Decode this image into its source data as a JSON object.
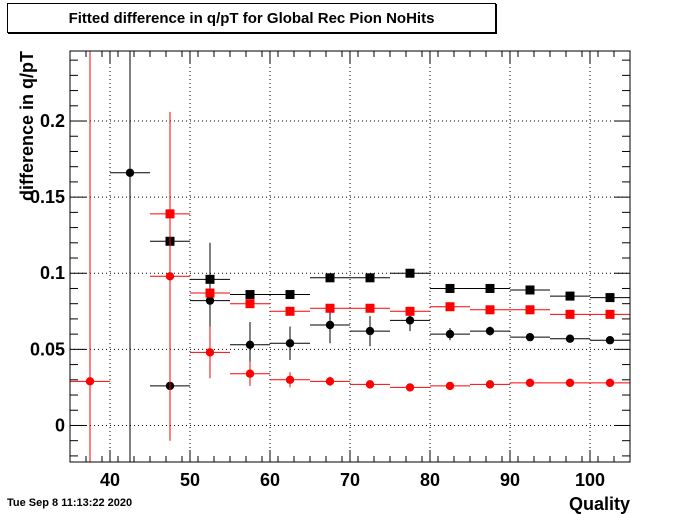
{
  "title": "Fitted difference in q/pT for Global Rec Pion NoHits",
  "timestamp": "Tue Sep  8 11:13:22 2020",
  "chart_data": {
    "type": "scatter",
    "title": "Fitted difference in q/pT for Global Rec Pion NoHits",
    "xlabel": "Quality",
    "ylabel": "difference in q/pT",
    "xlim": [
      35,
      105
    ],
    "ylim": [
      -0.024,
      0.246
    ],
    "grid": true,
    "xticks": [
      40,
      50,
      60,
      70,
      80,
      90,
      100
    ],
    "yticks": [
      0,
      0.05,
      0.1,
      0.15,
      0.2
    ],
    "ytick_labels": [
      "0",
      "0.05",
      "0.1",
      "0.15",
      "0.2"
    ],
    "series": [
      {
        "color": "#000000",
        "marker": "circle",
        "points": [
          {
            "x": 42.5,
            "y": 0.166,
            "err": 0.25
          },
          {
            "x": 47.5,
            "y": 0.026,
            "err": 0.0
          },
          {
            "x": 52.5,
            "y": 0.082,
            "err": 0.038
          },
          {
            "x": 57.5,
            "y": 0.053,
            "err": 0.015
          },
          {
            "x": 62.5,
            "y": 0.054,
            "err": 0.011
          },
          {
            "x": 67.5,
            "y": 0.066,
            "err": 0.012
          },
          {
            "x": 72.5,
            "y": 0.062,
            "err": 0.01
          },
          {
            "x": 77.5,
            "y": 0.069,
            "err": 0.007
          },
          {
            "x": 82.5,
            "y": 0.06,
            "err": 0.004
          },
          {
            "x": 87.5,
            "y": 0.062,
            "err": 0.003
          },
          {
            "x": 92.5,
            "y": 0.058,
            "err": 0.002
          },
          {
            "x": 97.5,
            "y": 0.057,
            "err": 0.002
          },
          {
            "x": 102.5,
            "y": 0.056,
            "err": 0.002
          }
        ]
      },
      {
        "color": "#000000",
        "marker": "square",
        "points": [
          {
            "x": 47.5,
            "y": 0.121,
            "err": 0.0
          },
          {
            "x": 52.5,
            "y": 0.096,
            "err": 0.0
          },
          {
            "x": 57.5,
            "y": 0.086,
            "err": 0.0
          },
          {
            "x": 62.5,
            "y": 0.086,
            "err": 0.0
          },
          {
            "x": 67.5,
            "y": 0.097,
            "err": 0.0
          },
          {
            "x": 72.5,
            "y": 0.097,
            "err": 0.0
          },
          {
            "x": 77.5,
            "y": 0.1,
            "err": 0.0
          },
          {
            "x": 82.5,
            "y": 0.09,
            "err": 0.0
          },
          {
            "x": 87.5,
            "y": 0.09,
            "err": 0.0
          },
          {
            "x": 92.5,
            "y": 0.089,
            "err": 0.0
          },
          {
            "x": 97.5,
            "y": 0.085,
            "err": 0.0
          },
          {
            "x": 102.5,
            "y": 0.084,
            "err": 0.0
          }
        ]
      },
      {
        "color": "#ff0000",
        "marker": "circle",
        "points": [
          {
            "x": 37.5,
            "y": 0.029,
            "err": 0.25
          },
          {
            "x": 47.5,
            "y": 0.098,
            "err": 0.108
          },
          {
            "x": 52.5,
            "y": 0.048,
            "err": 0.017
          },
          {
            "x": 57.5,
            "y": 0.034,
            "err": 0.008
          },
          {
            "x": 62.5,
            "y": 0.03,
            "err": 0.005
          },
          {
            "x": 67.5,
            "y": 0.029,
            "err": 0.003
          },
          {
            "x": 72.5,
            "y": 0.027,
            "err": 0.002
          },
          {
            "x": 77.5,
            "y": 0.025,
            "err": 0.002
          },
          {
            "x": 82.5,
            "y": 0.026,
            "err": 0.001
          },
          {
            "x": 87.5,
            "y": 0.027,
            "err": 0.001
          },
          {
            "x": 92.5,
            "y": 0.028,
            "err": 0.001
          },
          {
            "x": 97.5,
            "y": 0.028,
            "err": 0.001
          },
          {
            "x": 102.5,
            "y": 0.028,
            "err": 0.001
          }
        ]
      },
      {
        "color": "#ff0000",
        "marker": "square",
        "points": [
          {
            "x": 47.5,
            "y": 0.139,
            "err": 0.0
          },
          {
            "x": 52.5,
            "y": 0.087,
            "err": 0.0
          },
          {
            "x": 57.5,
            "y": 0.08,
            "err": 0.0
          },
          {
            "x": 62.5,
            "y": 0.075,
            "err": 0.0
          },
          {
            "x": 67.5,
            "y": 0.077,
            "err": 0.0
          },
          {
            "x": 72.5,
            "y": 0.077,
            "err": 0.0
          },
          {
            "x": 77.5,
            "y": 0.075,
            "err": 0.0
          },
          {
            "x": 82.5,
            "y": 0.078,
            "err": 0.0
          },
          {
            "x": 87.5,
            "y": 0.076,
            "err": 0.0
          },
          {
            "x": 92.5,
            "y": 0.076,
            "err": 0.0
          },
          {
            "x": 97.5,
            "y": 0.073,
            "err": 0.0
          },
          {
            "x": 102.5,
            "y": 0.073,
            "err": 0.0
          }
        ]
      }
    ]
  }
}
